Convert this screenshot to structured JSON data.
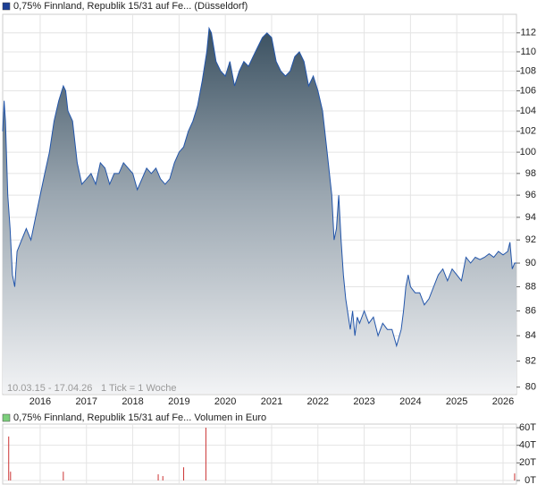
{
  "chart_data": [
    {
      "type": "area",
      "log": true,
      "grid": true,
      "line_color": "#2255aa",
      "series": [
        {
          "name": "0,75% Finnland, Republik 15/31 auf Fe... (Düsseldorf)",
          "color": "#1c3f94",
          "x": [
            2015.19,
            2015.22,
            2015.25,
            2015.3,
            2015.35,
            2015.4,
            2015.45,
            2015.5,
            2015.6,
            2015.7,
            2015.8,
            2015.9,
            2016.0,
            2016.1,
            2016.2,
            2016.3,
            2016.4,
            2016.5,
            2016.55,
            2016.6,
            2016.7,
            2016.8,
            2016.9,
            2017.0,
            2017.1,
            2017.2,
            2017.3,
            2017.4,
            2017.5,
            2017.6,
            2017.7,
            2017.8,
            2017.9,
            2018.0,
            2018.1,
            2018.2,
            2018.3,
            2018.4,
            2018.5,
            2018.6,
            2018.7,
            2018.8,
            2018.9,
            2019.0,
            2019.1,
            2019.2,
            2019.3,
            2019.4,
            2019.5,
            2019.6,
            2019.65,
            2019.7,
            2019.8,
            2019.9,
            2020.0,
            2020.1,
            2020.2,
            2020.3,
            2020.4,
            2020.5,
            2020.6,
            2020.7,
            2020.8,
            2020.9,
            2021.0,
            2021.1,
            2021.2,
            2021.3,
            2021.4,
            2021.5,
            2021.6,
            2021.7,
            2021.8,
            2021.9,
            2022.0,
            2022.1,
            2022.2,
            2022.3,
            2022.35,
            2022.4,
            2022.45,
            2022.5,
            2022.55,
            2022.6,
            2022.7,
            2022.75,
            2022.8,
            2022.85,
            2022.9,
            2023.0,
            2023.1,
            2023.2,
            2023.3,
            2023.4,
            2023.5,
            2023.6,
            2023.7,
            2023.8,
            2023.85,
            2023.9,
            2023.95,
            2024.0,
            2024.1,
            2024.2,
            2024.3,
            2024.4,
            2024.5,
            2024.6,
            2024.7,
            2024.8,
            2024.9,
            2025.0,
            2025.1,
            2025.2,
            2025.3,
            2025.4,
            2025.5,
            2025.6,
            2025.7,
            2025.8,
            2025.9,
            2026.0,
            2026.1,
            2026.15,
            2026.2,
            2026.25,
            2026.29
          ],
          "values": [
            102,
            105,
            103,
            96,
            93,
            89,
            88,
            91,
            92,
            93,
            92,
            94,
            96,
            98,
            100,
            103,
            105,
            106.5,
            106,
            104,
            103,
            99,
            97,
            97.5,
            98,
            97,
            99,
            98.5,
            97,
            98,
            98,
            99,
            98.5,
            98,
            96.5,
            97.5,
            98.5,
            98,
            98.5,
            97.5,
            97,
            97.5,
            99,
            100,
            100.5,
            102,
            103,
            104.5,
            107,
            110,
            112.5,
            112,
            109,
            108,
            107.5,
            109,
            106.5,
            108,
            109,
            108.5,
            109.5,
            110.5,
            111.5,
            112,
            111.5,
            109,
            108,
            107.5,
            108,
            109.5,
            110,
            109,
            106.5,
            107.5,
            106,
            104,
            100,
            96,
            92,
            93,
            96,
            92,
            89,
            87,
            84.5,
            86,
            84,
            85.5,
            85,
            86,
            85,
            85.5,
            84,
            85,
            84.5,
            84.5,
            83.2,
            84.5,
            86,
            88,
            89,
            88,
            87.5,
            87.5,
            86.5,
            87,
            88,
            89,
            89.5,
            88.5,
            89.5,
            89,
            88.5,
            90.5,
            90,
            90.5,
            90.3,
            90.5,
            90.8,
            90.5,
            91,
            90.7,
            91,
            91.8,
            89.5,
            90,
            90
          ]
        }
      ],
      "xlim": [
        2015.19,
        2026.29
      ],
      "xticks": [
        2016,
        2017,
        2018,
        2019,
        2020,
        2021,
        2022,
        2023,
        2024,
        2025,
        2026
      ],
      "ylim": [
        79.5,
        113.8
      ],
      "yticks": [
        80,
        82,
        84,
        86,
        88,
        90,
        92,
        94,
        96,
        98,
        100,
        102,
        104,
        106,
        108,
        110,
        112
      ],
      "range": "10.03.15 - 17.04.26",
      "tick_note": "1 Tick = 1 Woche"
    },
    {
      "type": "bar",
      "grid": true,
      "series": [
        {
          "name": "0,75% Finnland, Republik 15/31 auf Fe... Volumen in Euro",
          "color": "#7ccf7c",
          "bar_color": "#cc3333",
          "x": [
            2015.32,
            2015.36,
            2016.5,
            2018.55,
            2018.65,
            2019.1,
            2019.58,
            2026.25
          ],
          "values": [
            50000,
            10000,
            10000,
            7000,
            5000,
            15000,
            60000,
            8000
          ]
        }
      ],
      "xlim": [
        2015.19,
        2026.29
      ],
      "xticks": [
        2016,
        2017,
        2018,
        2019,
        2020,
        2021,
        2022,
        2023,
        2024,
        2025,
        2026
      ],
      "ylim": [
        0,
        60000
      ],
      "yticks": [
        {
          "value": 0,
          "label": "0T"
        },
        {
          "value": 20000,
          "label": "20T"
        },
        {
          "value": 40000,
          "label": "40T"
        },
        {
          "value": 60000,
          "label": "60T"
        }
      ]
    }
  ]
}
